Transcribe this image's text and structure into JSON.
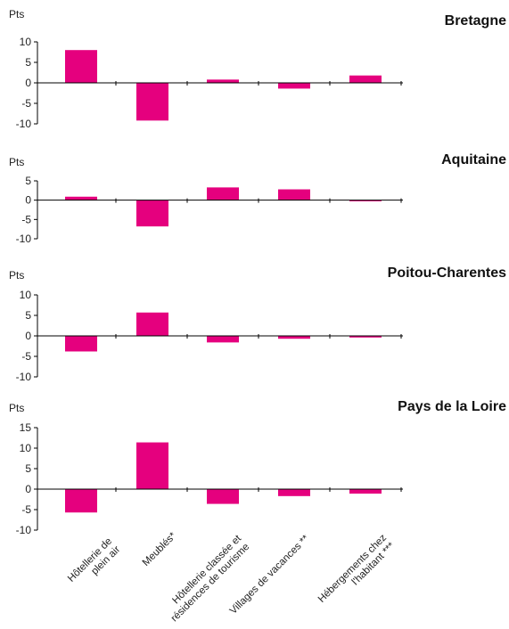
{
  "chart_data": [
    {
      "type": "bar",
      "title": "Bretagne",
      "ylabel": "Pts",
      "ylim": [
        -10,
        10
      ],
      "yticks": [
        10,
        5,
        0,
        -5,
        -10
      ],
      "color": "#e5007e",
      "categories": [
        "Hôtellerie de plein air",
        "Meublés*",
        "Hôtellerie classée et résidences de tourisme",
        "Villages de vacances **",
        "Hébergements chez l'habitant ***"
      ],
      "values": [
        8,
        -9.2,
        0.8,
        -1.4,
        1.8
      ]
    },
    {
      "type": "bar",
      "title": "Aquitaine",
      "ylabel": "Pts",
      "ylim": [
        -10,
        5
      ],
      "yticks": [
        5,
        0,
        -5,
        -10
      ],
      "color": "#e5007e",
      "categories": [
        "Hôtellerie de plein air",
        "Meublés*",
        "Hôtellerie classée et résidences de tourisme",
        "Villages de vacances **",
        "Hébergements chez l'habitant ***"
      ],
      "values": [
        0.9,
        -6.8,
        3.3,
        2.8,
        -0.3
      ]
    },
    {
      "type": "bar",
      "title": "Poitou-Charentes",
      "ylabel": "Pts",
      "ylim": [
        -10,
        10
      ],
      "yticks": [
        10,
        5,
        0,
        -5,
        -10
      ],
      "color": "#e5007e",
      "categories": [
        "Hôtellerie de plein air",
        "Meublés*",
        "Hôtellerie classée et résidences de tourisme",
        "Villages de vacances **",
        "Hébergements chez l'habitant ***"
      ],
      "values": [
        -3.8,
        5.7,
        -1.6,
        -0.7,
        -0.4
      ]
    },
    {
      "type": "bar",
      "title": "Pays de la Loire",
      "ylabel": "Pts",
      "ylim": [
        -10,
        15
      ],
      "yticks": [
        15,
        10,
        5,
        0,
        -5,
        -10
      ],
      "color": "#e5007e",
      "categories": [
        "Hôtellerie de plein air",
        "Meublés*",
        "Hôtellerie classée et résidences de tourisme",
        "Villages de vacances **",
        "Hébergements chez l'habitant ***"
      ],
      "values": [
        -5.7,
        11.4,
        -3.6,
        -1.7,
        -1.1
      ]
    }
  ],
  "category_labels": [
    [
      "Hôtellerie de",
      "plein air"
    ],
    [
      "Meublés*"
    ],
    [
      "Hôtellerie classée et",
      "résidences de tourisme"
    ],
    [
      "Villages de vacances **"
    ],
    [
      "Hébergements chez",
      "l'habitant ***"
    ]
  ]
}
